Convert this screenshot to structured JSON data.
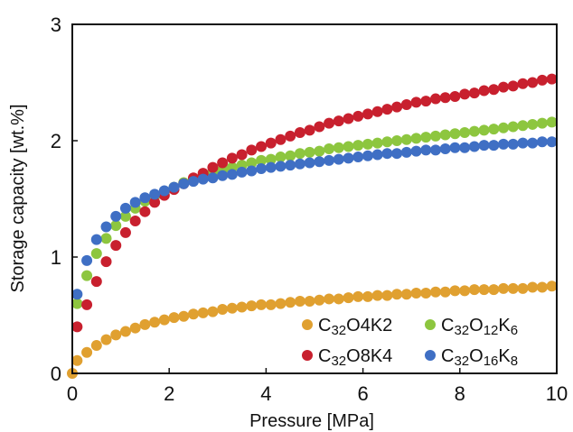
{
  "chart_data": {
    "type": "scatter",
    "xlabel": "Pressure [MPa]",
    "ylabel": "Storage capacity [wt.%]",
    "xlim": [
      0,
      10
    ],
    "ylim": [
      0,
      3
    ],
    "x_ticks": [
      "0",
      "2",
      "4",
      "6",
      "8",
      "10"
    ],
    "y_ticks": [
      "0",
      "1",
      "2",
      "3"
    ],
    "grid": false,
    "legend_position": "bottom-right",
    "series": [
      {
        "name": "C32O4K2",
        "label_parts": [
          [
            "C",
            "n"
          ],
          [
            "32",
            "sub"
          ],
          [
            "O",
            "n"
          ],
          [
            "4",
            "n"
          ],
          [
            "K",
            "n"
          ],
          [
            "2",
            "n"
          ]
        ],
        "color": "#E0A030",
        "x": [
          0,
          0.1,
          0.3,
          0.5,
          0.7,
          0.9,
          1.1,
          1.3,
          1.5,
          1.7,
          1.9,
          2.1,
          2.3,
          2.5,
          2.7,
          2.9,
          3.1,
          3.3,
          3.5,
          3.7,
          3.9,
          4.1,
          4.3,
          4.5,
          4.7,
          4.9,
          5.1,
          5.3,
          5.5,
          5.7,
          5.9,
          6.1,
          6.3,
          6.5,
          6.7,
          6.9,
          7.1,
          7.3,
          7.5,
          7.7,
          7.9,
          8.1,
          8.3,
          8.5,
          8.7,
          8.9,
          9.1,
          9.3,
          9.5,
          9.7,
          9.9
        ],
        "y": [
          0,
          0.11,
          0.18,
          0.24,
          0.29,
          0.33,
          0.36,
          0.39,
          0.42,
          0.44,
          0.46,
          0.48,
          0.49,
          0.51,
          0.52,
          0.53,
          0.55,
          0.56,
          0.57,
          0.58,
          0.59,
          0.59,
          0.6,
          0.61,
          0.62,
          0.62,
          0.63,
          0.64,
          0.64,
          0.65,
          0.66,
          0.66,
          0.67,
          0.67,
          0.68,
          0.68,
          0.69,
          0.69,
          0.7,
          0.7,
          0.71,
          0.71,
          0.72,
          0.72,
          0.72,
          0.73,
          0.73,
          0.73,
          0.74,
          0.74,
          0.75
        ]
      },
      {
        "name": "C32O12K6",
        "label_parts": [
          [
            "C",
            "n"
          ],
          [
            "32",
            "sub"
          ],
          [
            "O",
            "n"
          ],
          [
            "12",
            "sub"
          ],
          [
            "K",
            "n"
          ],
          [
            "6",
            "sub"
          ]
        ],
        "color": "#8DC63F",
        "x": [
          0.1,
          0.3,
          0.5,
          0.7,
          0.9,
          1.1,
          1.3,
          1.5,
          1.7,
          1.9,
          2.1,
          2.3,
          2.5,
          2.7,
          2.9,
          3.1,
          3.3,
          3.5,
          3.7,
          3.9,
          4.1,
          4.3,
          4.5,
          4.7,
          4.9,
          5.1,
          5.3,
          5.5,
          5.7,
          5.9,
          6.1,
          6.3,
          6.5,
          6.7,
          6.9,
          7.1,
          7.3,
          7.5,
          7.7,
          7.9,
          8.1,
          8.3,
          8.5,
          8.7,
          8.9,
          9.1,
          9.3,
          9.5,
          9.7,
          9.9
        ],
        "y": [
          0.6,
          0.84,
          1.03,
          1.16,
          1.27,
          1.35,
          1.42,
          1.48,
          1.52,
          1.56,
          1.6,
          1.64,
          1.67,
          1.7,
          1.73,
          1.75,
          1.77,
          1.79,
          1.81,
          1.83,
          1.84,
          1.86,
          1.87,
          1.89,
          1.9,
          1.91,
          1.93,
          1.94,
          1.95,
          1.96,
          1.97,
          1.98,
          1.99,
          2,
          2.01,
          2.02,
          2.03,
          2.04,
          2.05,
          2.06,
          2.07,
          2.08,
          2.09,
          2.1,
          2.11,
          2.12,
          2.13,
          2.14,
          2.15,
          2.16
        ]
      },
      {
        "name": "C32O8K4",
        "label_parts": [
          [
            "C",
            "n"
          ],
          [
            "32",
            "sub"
          ],
          [
            "O",
            "n"
          ],
          [
            "8",
            "n"
          ],
          [
            "K",
            "n"
          ],
          [
            "4",
            "n"
          ]
        ],
        "color": "#C8202E",
        "x": [
          0.1,
          0.3,
          0.5,
          0.7,
          0.9,
          1.1,
          1.3,
          1.5,
          1.7,
          1.9,
          2.1,
          2.3,
          2.5,
          2.7,
          2.9,
          3.1,
          3.3,
          3.5,
          3.7,
          3.9,
          4.1,
          4.3,
          4.5,
          4.7,
          4.9,
          5.1,
          5.3,
          5.5,
          5.7,
          5.9,
          6.1,
          6.3,
          6.5,
          6.7,
          6.9,
          7.1,
          7.3,
          7.5,
          7.7,
          7.9,
          8.1,
          8.3,
          8.5,
          8.7,
          8.9,
          9.1,
          9.3,
          9.5,
          9.7,
          9.9
        ],
        "y": [
          0.4,
          0.59,
          0.79,
          0.96,
          1.1,
          1.21,
          1.31,
          1.39,
          1.47,
          1.53,
          1.58,
          1.63,
          1.68,
          1.72,
          1.77,
          1.81,
          1.85,
          1.88,
          1.92,
          1.95,
          1.98,
          2.01,
          2.04,
          2.07,
          2.09,
          2.12,
          2.15,
          2.17,
          2.19,
          2.21,
          2.23,
          2.25,
          2.27,
          2.29,
          2.31,
          2.33,
          2.34,
          2.36,
          2.37,
          2.38,
          2.4,
          2.41,
          2.43,
          2.44,
          2.46,
          2.47,
          2.49,
          2.5,
          2.52,
          2.53
        ]
      },
      {
        "name": "C32O16K8",
        "label_parts": [
          [
            "C",
            "n"
          ],
          [
            "32",
            "sub"
          ],
          [
            "O",
            "n"
          ],
          [
            "16",
            "sub"
          ],
          [
            "K",
            "n"
          ],
          [
            "8",
            "sub"
          ]
        ],
        "color": "#3F6FC4",
        "x": [
          0.1,
          0.3,
          0.5,
          0.7,
          0.9,
          1.1,
          1.3,
          1.5,
          1.7,
          1.9,
          2.1,
          2.3,
          2.5,
          2.7,
          2.9,
          3.1,
          3.3,
          3.5,
          3.7,
          3.9,
          4.1,
          4.3,
          4.5,
          4.7,
          4.9,
          5.1,
          5.3,
          5.5,
          5.7,
          5.9,
          6.1,
          6.3,
          6.5,
          6.7,
          6.9,
          7.1,
          7.3,
          7.5,
          7.7,
          7.9,
          8.1,
          8.3,
          8.5,
          8.7,
          8.9,
          9.1,
          9.3,
          9.5,
          9.7,
          9.9
        ],
        "y": [
          0.68,
          0.97,
          1.15,
          1.26,
          1.35,
          1.42,
          1.47,
          1.51,
          1.54,
          1.57,
          1.6,
          1.63,
          1.65,
          1.67,
          1.68,
          1.7,
          1.71,
          1.73,
          1.74,
          1.76,
          1.77,
          1.78,
          1.79,
          1.8,
          1.81,
          1.82,
          1.83,
          1.84,
          1.85,
          1.86,
          1.87,
          1.88,
          1.89,
          1.89,
          1.9,
          1.91,
          1.92,
          1.92,
          1.93,
          1.94,
          1.94,
          1.95,
          1.96,
          1.96,
          1.97,
          1.97,
          1.98,
          1.98,
          1.99,
          1.99
        ]
      }
    ]
  }
}
